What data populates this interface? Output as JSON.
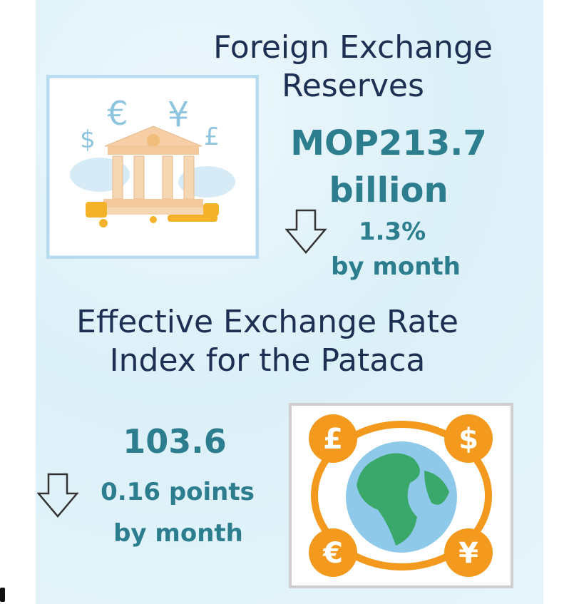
{
  "reserves": {
    "title": "Foreign Exchange Reserves",
    "amount": "MOP213.7 billion",
    "change": "1.3%",
    "period": "by month",
    "icon_symbols": [
      "$",
      "€",
      "¥",
      "£"
    ]
  },
  "rate_index": {
    "title": "Effective Exchange Rate Index for the Pataca",
    "value": "103.6",
    "change": "0.16 points",
    "period": "by month",
    "icon_symbols": [
      "£",
      "$",
      "€",
      "¥"
    ]
  }
}
